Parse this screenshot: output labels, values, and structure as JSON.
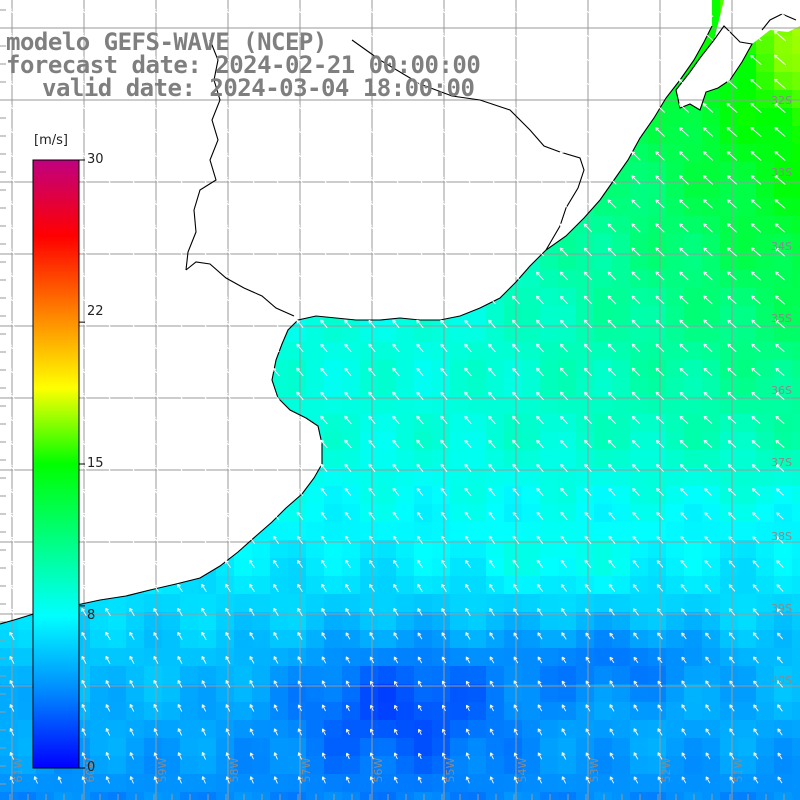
{
  "title": {
    "line1": "modelo GEFS-WAVE (NCEP)",
    "line2": "forecast date: 2024-02-21 00:00:00",
    "line3": "valid date: 2024-03-04 18:00:00"
  },
  "colorbar": {
    "unit": "[m/s]",
    "ticks": [
      "30",
      "22",
      "15",
      "8",
      "0"
    ],
    "tick_values": [
      30,
      22,
      15,
      8,
      0
    ],
    "min": 0,
    "max": 30,
    "colors": [
      "#0000ff",
      "#0088ff",
      "#00ffff",
      "#00ff80",
      "#00ff00",
      "#ffff00",
      "#ff8000",
      "#ff0000",
      "#c00080"
    ]
  },
  "grid": {
    "lat_labels": [
      "32S",
      "33S",
      "34S",
      "35S",
      "36S",
      "37S",
      "38S",
      "39S",
      "40S"
    ],
    "lon_labels": [
      "61W",
      "60W",
      "59W",
      "58W",
      "57W",
      "56W",
      "55W",
      "54W",
      "53W",
      "52W",
      "51W"
    ]
  },
  "colors": {
    "land": "#ffffff",
    "coast": "#000000",
    "gridline": "#9a9a9a",
    "title_text": "#7f7f7f"
  },
  "field": {
    "variable": "wind speed",
    "units": "m/s",
    "lon_range": [
      -61.2,
      -50.8
    ],
    "lat_range": [
      -41.4,
      -30.2
    ],
    "regions": [
      {
        "zone": "north-east open sea",
        "speed_ms": 14
      },
      {
        "zone": "central shelf",
        "speed_ms": 9
      },
      {
        "zone": "southern shelf",
        "speed_ms": 5
      },
      {
        "zone": "south-central minimum",
        "speed_ms": 3
      }
    ],
    "wind_direction": "from south-east, arrows pointing north-west"
  }
}
